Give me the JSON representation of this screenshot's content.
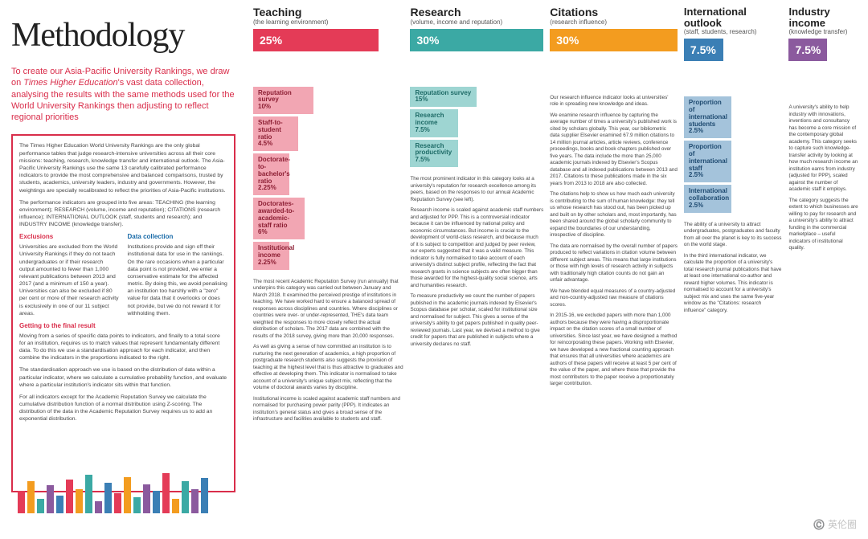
{
  "title": "Methodology",
  "intro_pre": "To create our Asia-Pacific University Rankings, we draw on ",
  "intro_italic": "Times Higher Education",
  "intro_post": "'s vast data collection, analysing the results with the same methods used for the World University Rankings then adjusting to reflect regional priorities",
  "body": {
    "p1": "The Times Higher Education World University Rankings are the only global performance tables that judge research-intensive universities across all their core missions: teaching, research, knowledge transfer and international outlook. The Asia-Pacific University Rankings use the same 13 carefully calibrated performance indicators to provide the most comprehensive and balanced comparisons, trusted by students, academics, university leaders, industry and governments. However, the weightings are specially recalibrated to reflect the priorities of Asia-Pacific institutions.",
    "p2": "The performance indicators are grouped into five areas: TEACHING (the learning environment); RESEARCH (volume, income and reputation); CITATIONS (research influence); INTERNATIONAL OUTLOOK (staff, students and research); and INDUSTRY INCOME (knowledge transfer).",
    "exclusions_h": "Exclusions",
    "exclusions": "Universities are excluded from the World University Rankings if they do not teach undergraduates or if their research output amounted to fewer than 1,000 relevant publications between 2013 and 2017 (and a minimum of 150 a year). Universities can also be excluded if 80 per cent or more of their research activity is exclusively in one of our 11 subject areas.",
    "data_h": "Data collection",
    "data": "Institutions provide and sign off their institutional data for use in the rankings. On the rare occasions when a particular data point is not provided, we enter a conservative estimate for the affected metric. By doing this, we avoid penalising an institution too harshly with a \"zero\" value for data that it overlooks or does not provide, but we do not reward it for withholding them.",
    "final_h": "Getting to the final result",
    "final1": "Moving from a series of specific data points to indicators, and finally to a total score for an institution, requires us to match values that represent fundamentally different data. To do this we use a standardisation approach for each indicator, and then combine the indicators in the proportions indicated to the right.",
    "final2": "The standardisation approach we use is based on the distribution of data within a particular indicator, where we calculate a cumulative probability function, and evaluate where a particular institution's indicator sits within that function.",
    "final3": "For all indicators except for the Academic Reputation Survey we calculate the cumulative distribution function of a normal distribution using Z-scoring. The distribution of the data in the Academic Reputation Survey requires us to add an exponential distribution."
  },
  "small_chart": {
    "heights": [
      28,
      40,
      18,
      35,
      22,
      42,
      30,
      48,
      15,
      38,
      25,
      45,
      20,
      36,
      28,
      50,
      18,
      40,
      30,
      44
    ],
    "colors": [
      "#e43b57",
      "#f39c1f",
      "#3ba9a4",
      "#8b5a9e",
      "#3b7fb5",
      "#e43b57",
      "#f39c1f",
      "#3ba9a4",
      "#8b5a9e",
      "#3b7fb5",
      "#e43b57",
      "#f39c1f",
      "#3ba9a4",
      "#8b5a9e",
      "#3b7fb5",
      "#e43b57",
      "#f39c1f",
      "#3ba9a4",
      "#8b5a9e",
      "#3b7fb5"
    ]
  },
  "pillars": {
    "teaching": {
      "title": "Teaching",
      "subtitle": "(the learning environment)",
      "main_pct": "25%",
      "color": "#e43b57",
      "bars": [
        {
          "label": "Reputation survey",
          "pct": "10%",
          "w": 40
        },
        {
          "label": "Staff-to-student ratio",
          "pct": "4.5%",
          "w": 30
        },
        {
          "label": "Doctorate-to-bachelor's ratio",
          "pct": "2.25%",
          "w": 24
        },
        {
          "label": "Doctorates-awarded-to-academic-staff ratio",
          "pct": "6%",
          "w": 34
        },
        {
          "label": "Institutional income",
          "pct": "2.25%",
          "w": 24
        }
      ],
      "body": [
        "The most recent Academic Reputation Survey (run annually) that underpins this category was carried out between January and March 2018. It examined the perceived prestige of institutions in teaching. We have worked hard to ensure a balanced spread of responses across disciplines and countries. Where disciplines or countries were over- or under-represented, THE's data team weighted the responses to more closely reflect the actual distribution of scholars. The 2017 data are combined with the results of the 2018 survey, giving more than 20,000 responses.",
        "As well as giving a sense of how committed an institution is to nurturing the next generation of academics, a high proportion of postgraduate research students also suggests the provision of teaching at the highest level that is thus attractive to graduates and effective at developing them. This indicator is normalised to take account of a university's unique subject mix, reflecting that the volume of doctoral awards varies by discipline.",
        "Institutional income is scaled against academic staff numbers and normalised for purchasing power parity (PPP). It indicates an institution's general status and gives a broad sense of the infrastructure and facilities available to students and staff."
      ]
    },
    "research": {
      "title": "Research",
      "subtitle": "(volume, income and reputation)",
      "main_pct": "30%",
      "color": "#3ba9a4",
      "bars": [
        {
          "label": "Reputation survey",
          "pct": "15%",
          "w": 50
        },
        {
          "label": "Research income",
          "pct": "7.5%",
          "w": 36
        },
        {
          "label": "Research productivity",
          "pct": "7.5%",
          "w": 36
        }
      ],
      "body": [
        "The most prominent indicator in this category looks at a university's reputation for research excellence among its peers, based on the responses to our annual Academic Reputation Survey (see left).",
        "Research income is scaled against academic staff numbers and adjusted for PPP. This is a controversial indicator because it can be influenced by national policy and economic circumstances. But income is crucial to the development of world-class research, and because much of it is subject to competition and judged by peer review, our experts suggested that it was a valid measure. This indicator is fully normalised to take account of each university's distinct subject profile, reflecting the fact that research grants in science subjects are often bigger than those awarded for the highest-quality social science, arts and humanities research.",
        "To measure productivity we count the number of papers published in the academic journals indexed by Elsevier's Scopus database per scholar, scaled for institutional size and normalised for subject. This gives a sense of the university's ability to get papers published in quality peer-reviewed journals. Last year, we devised a method to give credit for papers that are published in subjects where a university declares no staff."
      ]
    },
    "citations": {
      "title": "Citations",
      "subtitle": "(research influence)",
      "main_pct": "30%",
      "color": "#f39c1f",
      "body": [
        "Our research influence indicator looks at universities' role in spreading new knowledge and ideas.",
        "We examine research influence by capturing the average number of times a university's published work is cited by scholars globally. This year, our bibliometric data supplier Elsevier examined 67.9 million citations to 14 million journal articles, article reviews, conference proceedings, books and book chapters published over five years. The data include the more than 25,000 academic journals indexed by Elsevier's Scopus database and all indexed publications between 2013 and 2017. Citations to these publications made in the six years from 2013 to 2018 are also collected.",
        "The citations help to show us how much each university is contributing to the sum of human knowledge: they tell us whose research has stood out, has been picked up and built on by other scholars and, most importantly, has been shared around the global scholarly community to expand the boundaries of our understanding, irrespective of discipline.",
        "The data are normalised by the overall number of papers produced to reflect variations in citation volume between different subject areas. This means that large institutions or those with high levels of research activity in subjects with traditionally high citation counts do not gain an unfair advantage.",
        "We have blended equal measures of a country-adjusted and non-country-adjusted raw measure of citations scores.",
        "In 2015-16, we excluded papers with more than 1,000 authors because they were having a disproportionate impact on the citation scores of a small number of universities. Since last year, we have designed a method for reincorporating these papers. Working with Elsevier, we have developed a new fractional counting approach that ensures that all universities where academics are authors of these papers will receive at least 5 per cent of the value of the paper, and where those that provide the most contributors to the paper receive a proportionately larger contribution."
      ]
    },
    "intl": {
      "title": "International outlook",
      "subtitle": "(staff, students, research)",
      "main_pct": "7.5%",
      "color": "#3b7fb5",
      "bars": [
        {
          "label": "Proportion of international students",
          "pct": "2.5%",
          "w": 48
        },
        {
          "label": "Proportion of international staff",
          "pct": "2.5%",
          "w": 48
        },
        {
          "label": "International collaboration",
          "pct": "2.5%",
          "w": 48
        }
      ],
      "body": [
        "The ability of a university to attract undergraduates, postgraduates and faculty from all over the planet is key to its success on the world stage.",
        "In the third international indicator, we calculate the proportion of a university's total research journal publications that have at least one international co-author and reward higher volumes. This indicator is normalised to account for a university's subject mix and uses the same five-year window as the \"Citations: research influence\" category."
      ]
    },
    "industry": {
      "title": "Industry income",
      "subtitle": "(knowledge transfer)",
      "main_pct": "7.5%",
      "color": "#8b5a9e",
      "body": [
        "A university's ability to help industry with innovations, inventions and consultancy has become a core mission of the contemporary global academy. This category seeks to capture such knowledge-transfer activity by looking at how much research income an institution earns from industry (adjusted for PPP), scaled against the number of academic staff it employs.",
        "The category suggests the extent to which businesses are willing to pay for research and a university's ability to attract funding in the commercial marketplace – useful indicators of institutional quality."
      ]
    }
  },
  "watermark": "©️ 英伦圈"
}
